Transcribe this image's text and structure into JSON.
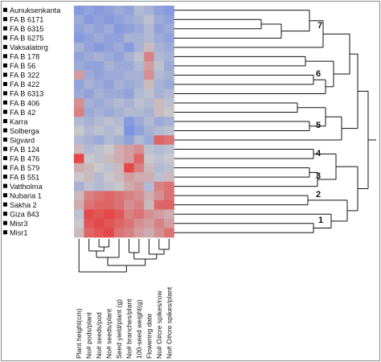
{
  "genotypes": [
    "Aunuksenkanta",
    "FA B 6171",
    "FA B 6315",
    "FA B 6275",
    "Vaksalatorg",
    "FA B 178",
    "FA B 56",
    "FA B 322",
    "FA B 422",
    "FA B 6313",
    "FA B 406",
    "FA B 42",
    "Karra",
    "Solberga",
    "Sigvard",
    "FA B 124",
    "FA B 476",
    "FA B 579",
    "FA B 551",
    "Vattholma",
    "Nubaria 1",
    "Sakha 2",
    "Giza 843",
    "Misr3",
    "Misr1"
  ],
  "traits": [
    "Plant height(cm)",
    "No# pods/plant",
    "No# seeds/pod",
    "No# seeds/plant",
    "Seed yield/plant (g)",
    "No# branches/plant",
    "100-seed weight(g)",
    "Flowering date",
    "No# O#cre spikes/row",
    "No# O#cre spikes/plant"
  ],
  "cluster_labels": [
    "7",
    "6",
    "5",
    "4",
    "3",
    "2",
    "1"
  ],
  "colors": {
    "low": "#5a7ce8",
    "mid": "#c8c8cc",
    "high": "#e83a3a"
  },
  "heatmap_values": [
    [
      -0.6,
      -0.5,
      -0.6,
      -0.5,
      -0.4,
      -0.5,
      -0.2,
      -0.3,
      -0.5,
      -0.6
    ],
    [
      -0.4,
      -0.6,
      -0.5,
      -0.6,
      -0.5,
      -0.4,
      -0.3,
      -0.1,
      -0.4,
      -0.5
    ],
    [
      -0.5,
      -0.4,
      -0.5,
      -0.4,
      -0.6,
      -0.5,
      -0.4,
      -0.2,
      -0.5,
      -0.4
    ],
    [
      -0.6,
      -0.5,
      -0.4,
      -0.5,
      -0.5,
      -0.3,
      -0.3,
      -0.2,
      -0.4,
      -0.5
    ],
    [
      -0.3,
      -0.5,
      -0.6,
      -0.5,
      -0.4,
      -0.6,
      -0.3,
      0.1,
      -0.3,
      -0.4
    ],
    [
      -0.5,
      -0.4,
      -0.3,
      -0.4,
      -0.5,
      -0.3,
      -0.1,
      0.5,
      -0.2,
      -0.3
    ],
    [
      -0.4,
      -0.5,
      -0.5,
      -0.3,
      -0.4,
      -0.4,
      -0.2,
      0.3,
      -0.1,
      -0.4
    ],
    [
      0.3,
      -0.4,
      -0.5,
      -0.4,
      -0.4,
      -0.3,
      -0.3,
      0.4,
      -0.2,
      -0.3
    ],
    [
      -0.5,
      -0.3,
      -0.4,
      -0.5,
      -0.3,
      -0.4,
      -0.3,
      0.1,
      -0.3,
      -0.4
    ],
    [
      -0.4,
      -0.5,
      -0.3,
      -0.4,
      -0.4,
      -0.5,
      -0.2,
      -0.1,
      -0.3,
      -0.2
    ],
    [
      0.4,
      -0.3,
      -0.4,
      -0.3,
      -0.2,
      -0.3,
      -0.1,
      -0.2,
      0.1,
      -0.1
    ],
    [
      0.5,
      -0.4,
      -0.3,
      -0.4,
      -0.3,
      -0.2,
      -0.2,
      -0.3,
      0.1,
      0.0
    ],
    [
      -0.2,
      -0.3,
      -0.2,
      -0.1,
      -0.2,
      -0.6,
      -0.4,
      -0.2,
      -0.4,
      -0.3
    ],
    [
      0.0,
      -0.2,
      -0.1,
      -0.2,
      -0.1,
      -0.7,
      -0.5,
      -0.3,
      -0.2,
      -0.1
    ],
    [
      -0.2,
      -0.3,
      -0.4,
      -0.2,
      -0.3,
      -0.5,
      -0.2,
      -0.4,
      0.7,
      0.6
    ],
    [
      0.1,
      -0.2,
      -0.1,
      0.0,
      0.2,
      0.3,
      0.4,
      -0.1,
      -0.2,
      -0.1
    ],
    [
      0.9,
      0.0,
      -0.1,
      0.1,
      0.2,
      0.3,
      0.7,
      0.0,
      -0.1,
      0.0
    ],
    [
      0.2,
      0.1,
      0.0,
      -0.1,
      0.1,
      0.9,
      0.5,
      0.1,
      -0.2,
      -0.1
    ],
    [
      0.0,
      0.1,
      -0.2,
      0.0,
      0.1,
      0.3,
      0.2,
      0.2,
      -0.1,
      0.1
    ],
    [
      -0.3,
      -0.1,
      -0.2,
      -0.1,
      0.0,
      0.2,
      0.3,
      -0.2,
      0.5,
      0.6
    ],
    [
      0.1,
      0.5,
      0.6,
      0.7,
      0.6,
      0.5,
      0.4,
      0.2,
      0.4,
      0.6
    ],
    [
      0.2,
      0.6,
      0.7,
      0.7,
      0.6,
      0.4,
      0.5,
      0.1,
      0.7,
      0.7
    ],
    [
      -0.1,
      0.9,
      0.8,
      0.9,
      0.8,
      0.5,
      0.6,
      0.4,
      0.3,
      0.2
    ],
    [
      0.0,
      0.8,
      0.9,
      0.8,
      0.7,
      0.6,
      0.4,
      0.3,
      0.5,
      0.3
    ],
    [
      0.1,
      0.7,
      0.8,
      0.9,
      0.6,
      0.5,
      0.3,
      0.2,
      0.4,
      0.6
    ]
  ]
}
